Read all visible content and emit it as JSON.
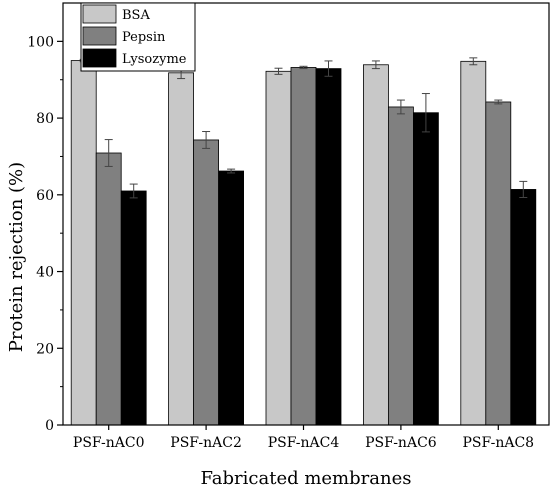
{
  "chart_data": {
    "type": "bar",
    "xlabel": "Fabricated membranes",
    "ylabel": "Protein rejection (%)",
    "ylim": [
      0,
      110
    ],
    "yticks": [
      0,
      20,
      40,
      60,
      80,
      100
    ],
    "grid": false,
    "legend_position": "top-left",
    "categories": [
      "PSF-nAC0",
      "PSF-nAC2",
      "PSF-nAC4",
      "PSF-nAC6",
      "PSF-nAC8"
    ],
    "series": [
      {
        "name": "BSA",
        "color": "#c8c8c8",
        "values": [
          95.0,
          91.8,
          92.2,
          93.9,
          94.8
        ],
        "errors": [
          0.3,
          1.5,
          0.8,
          1.0,
          0.9
        ]
      },
      {
        "name": "Pepsin",
        "color": "#808080",
        "values": [
          70.9,
          74.3,
          93.2,
          82.9,
          84.2
        ],
        "errors": [
          3.5,
          2.2,
          0.3,
          1.8,
          0.5
        ]
      },
      {
        "name": "Lysozyme",
        "color": "#000000",
        "values": [
          61.0,
          66.2,
          92.9,
          81.4,
          61.4
        ],
        "errors": [
          1.8,
          0.5,
          2.0,
          5.0,
          2.1
        ]
      }
    ]
  }
}
